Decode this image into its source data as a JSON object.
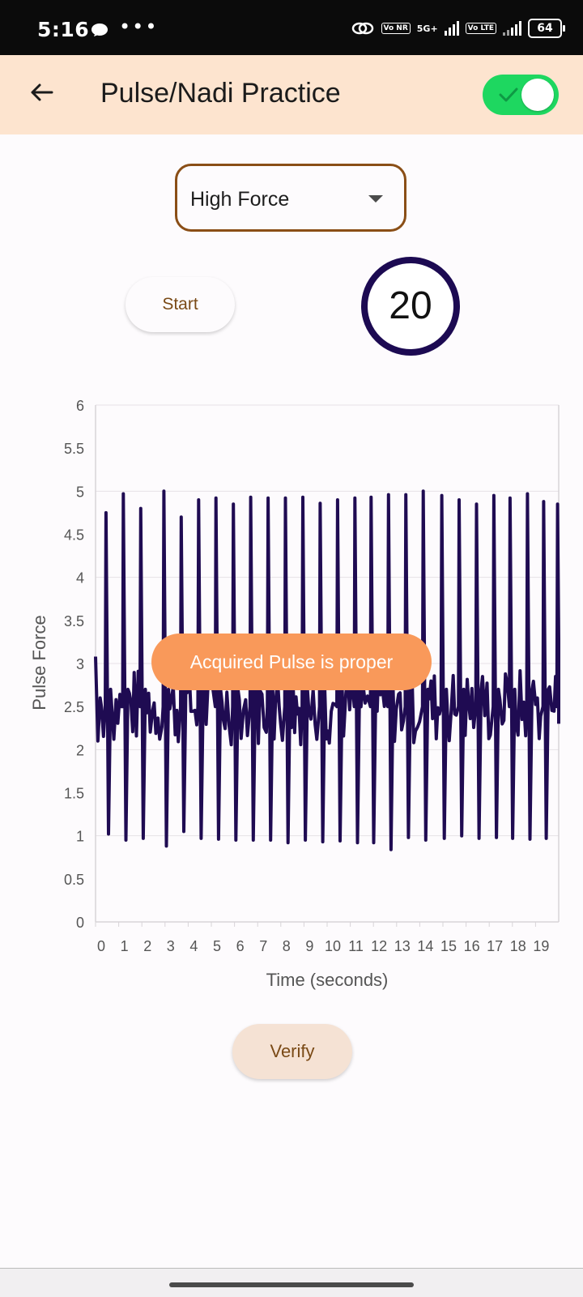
{
  "status_bar": {
    "time": "5:16",
    "icons": [
      "chat-bubble-icon",
      "more-dots-icon",
      "link-icon",
      "vonr-icon",
      "5g-signal-icon",
      "volte-icon",
      "signal-icon",
      "battery-icon"
    ],
    "vonr_label": "Vo NR",
    "network_label": "5G+",
    "volte_label": "Vo LTE",
    "battery": "64"
  },
  "app_bar": {
    "title": "Pulse/Nadi Practice",
    "toggle_on": true,
    "accent": "#1ed760",
    "background": "#fde4cf"
  },
  "controls": {
    "force_select_value": "High Force",
    "start_label": "Start",
    "countdown": "20",
    "verify_label": "Verify"
  },
  "toast": {
    "message": "Acquired Pulse is proper"
  },
  "chart_data": {
    "type": "line",
    "xlabel": "Time (seconds)",
    "ylabel": "Pulse Force",
    "xlim": [
      0,
      20
    ],
    "ylim": [
      0,
      6
    ],
    "x_ticks": [
      "0",
      "1",
      "2",
      "3",
      "4",
      "5",
      "6",
      "7",
      "8",
      "9",
      "10",
      "11",
      "12",
      "13",
      "14",
      "15",
      "16",
      "17",
      "18",
      "19"
    ],
    "y_ticks": [
      "0",
      "0.5",
      "1",
      "1.5",
      "2",
      "2.5",
      "3",
      "3.5",
      "4",
      "4.5",
      "5",
      "5.5",
      "6"
    ],
    "grid": true,
    "line_color": "#1f0b52",
    "peak_times": [
      0.45,
      1.2,
      1.95,
      2.95,
      3.7,
      4.45,
      5.2,
      5.95,
      6.7,
      7.45,
      8.2,
      8.95,
      9.7,
      10.45,
      11.2,
      11.9,
      12.65,
      13.4,
      14.15,
      14.95,
      15.7,
      16.45,
      17.2,
      17.9,
      18.65,
      19.35,
      19.95
    ],
    "peak_values": [
      4.75,
      4.97,
      4.8,
      5.0,
      4.7,
      4.9,
      4.92,
      4.85,
      4.93,
      4.92,
      4.92,
      4.93,
      4.86,
      4.9,
      4.92,
      4.93,
      4.96,
      4.96,
      5.0,
      4.95,
      4.9,
      4.85,
      4.95,
      4.92,
      4.97,
      4.88,
      4.85
    ],
    "trough_values": [
      1.02,
      0.95,
      0.97,
      0.88,
      1.05,
      0.97,
      0.96,
      0.95,
      0.95,
      0.95,
      0.92,
      0.95,
      0.93,
      0.94,
      0.92,
      0.92,
      0.84,
      0.98,
      0.95,
      0.97,
      1.0,
      0.97,
      0.98,
      0.97,
      0.96,
      0.97,
      0.97
    ],
    "baseline_range": [
      2.05,
      2.95
    ]
  },
  "bottom": {
    "home_indicator": "home-indicator"
  }
}
